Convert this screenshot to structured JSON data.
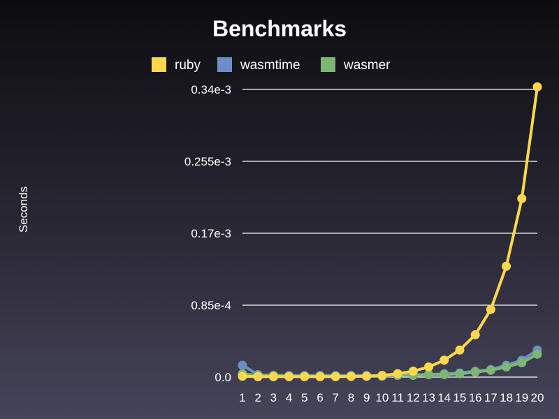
{
  "chart_data": {
    "type": "line",
    "title": "Benchmarks",
    "ylabel": "Seconds",
    "xlabel": "",
    "categories": [
      "1",
      "2",
      "3",
      "4",
      "5",
      "6",
      "7",
      "8",
      "9",
      "10",
      "11",
      "12",
      "13",
      "14",
      "15",
      "16",
      "17",
      "18",
      "19",
      "20"
    ],
    "ylim": [
      0,
      0.00034
    ],
    "yticks": [
      {
        "value": 0,
        "label": "0.0"
      },
      {
        "value": 8.5e-05,
        "label": "0.85e-4"
      },
      {
        "value": 0.00017,
        "label": "0.17e-3"
      },
      {
        "value": 0.000255,
        "label": "0.255e-3"
      },
      {
        "value": 0.00034,
        "label": "0.34e-3"
      }
    ],
    "grid": true,
    "legend_position": "top",
    "series": [
      {
        "name": "ruby",
        "color": "#fdd84e",
        "values": [
          1e-06,
          5e-07,
          5e-07,
          5e-07,
          5e-07,
          5e-07,
          5e-07,
          8e-07,
          1e-06,
          2e-06,
          4e-06,
          7e-06,
          1.2e-05,
          2e-05,
          3.2e-05,
          5e-05,
          8e-05,
          0.000131,
          0.000211,
          0.000343
        ]
      },
      {
        "name": "wasmtime",
        "color": "#6e8fc6",
        "values": [
          1.4e-05,
          3e-06,
          2e-06,
          2e-06,
          2e-06,
          2e-06,
          2e-06,
          2e-06,
          2e-06,
          2e-06,
          2e-06,
          3e-06,
          3e-06,
          4e-06,
          5e-06,
          7e-06,
          9e-06,
          1.4e-05,
          2e-05,
          3.2e-05
        ]
      },
      {
        "name": "wasmer",
        "color": "#7cb874",
        "values": [
          4e-06,
          2e-06,
          2e-06,
          1e-06,
          1e-06,
          1e-06,
          1e-06,
          1e-06,
          1e-06,
          1e-06,
          2e-06,
          2e-06,
          3e-06,
          3e-06,
          4e-06,
          6e-06,
          8e-06,
          1.2e-05,
          1.7e-05,
          2.7e-05
        ]
      }
    ]
  }
}
